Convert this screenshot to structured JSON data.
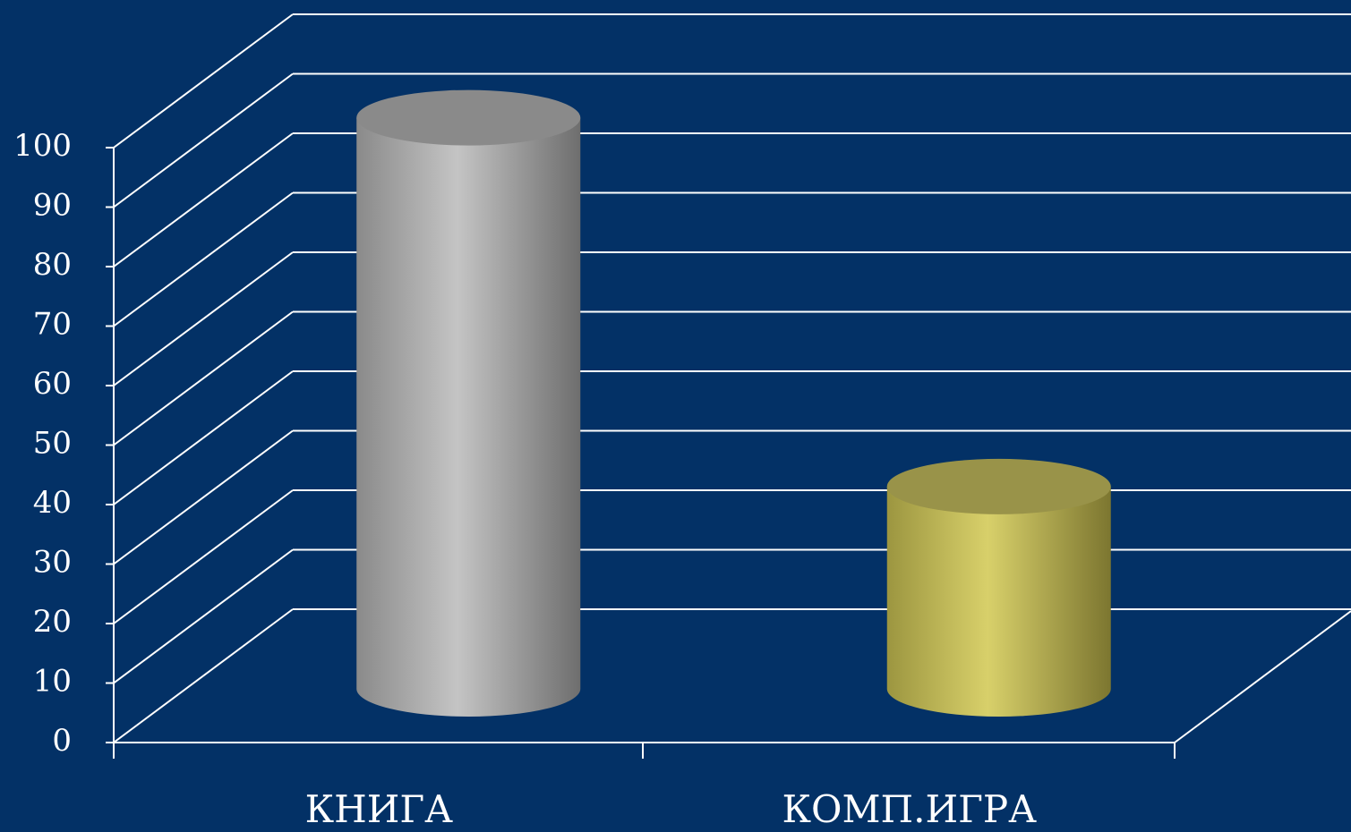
{
  "chart_data": {
    "type": "bar",
    "categories": [
      "КНИГА",
      "КОМП.ИГРА"
    ],
    "values": [
      96,
      34
    ],
    "colors": [
      "#c0c0c0",
      "#d4cc66"
    ],
    "ylim": [
      0,
      100
    ],
    "yticks": [
      0,
      10,
      20,
      30,
      40,
      50,
      60,
      70,
      80,
      90,
      100
    ],
    "grid": true
  }
}
